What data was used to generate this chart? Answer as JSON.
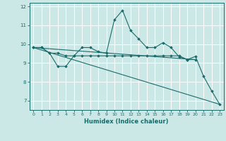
{
  "xlabel": "Humidex (Indice chaleur)",
  "bg_color": "#cce8e6",
  "grid_color": "#ffffff",
  "line_color": "#1a6b6b",
  "xlim": [
    -0.5,
    23.5
  ],
  "ylim": [
    6.5,
    12.2
  ],
  "yticks": [
    7,
    8,
    9,
    10,
    11,
    12
  ],
  "xticks": [
    0,
    1,
    2,
    3,
    4,
    5,
    6,
    7,
    8,
    9,
    10,
    11,
    12,
    13,
    14,
    15,
    16,
    17,
    18,
    19,
    20,
    21,
    22,
    23
  ],
  "line1_x": [
    0,
    1,
    2,
    3,
    4,
    5,
    6,
    7,
    8,
    9,
    10,
    11,
    12,
    13,
    14,
    15,
    16,
    17,
    18,
    19,
    20,
    21,
    22,
    23
  ],
  "line1_y": [
    9.82,
    9.82,
    9.52,
    8.82,
    8.82,
    9.38,
    9.82,
    9.82,
    9.6,
    9.52,
    11.3,
    11.8,
    10.72,
    10.28,
    9.82,
    9.82,
    10.08,
    9.82,
    9.32,
    9.18,
    9.35,
    8.3,
    7.52,
    6.8
  ],
  "line2_x": [
    0,
    1,
    2,
    3,
    4,
    5,
    6,
    7,
    8,
    9,
    10,
    11,
    12,
    13,
    14,
    15,
    16,
    17,
    18,
    19,
    20
  ],
  "line2_y": [
    9.82,
    9.82,
    9.52,
    9.52,
    9.38,
    9.38,
    9.38,
    9.38,
    9.38,
    9.38,
    9.38,
    9.38,
    9.38,
    9.38,
    9.38,
    9.38,
    9.38,
    9.38,
    9.38,
    9.18,
    9.18
  ],
  "line3_x": [
    0,
    23
  ],
  "line3_y": [
    9.82,
    6.8
  ],
  "line4_x": [
    0,
    20
  ],
  "line4_y": [
    9.82,
    9.18
  ]
}
